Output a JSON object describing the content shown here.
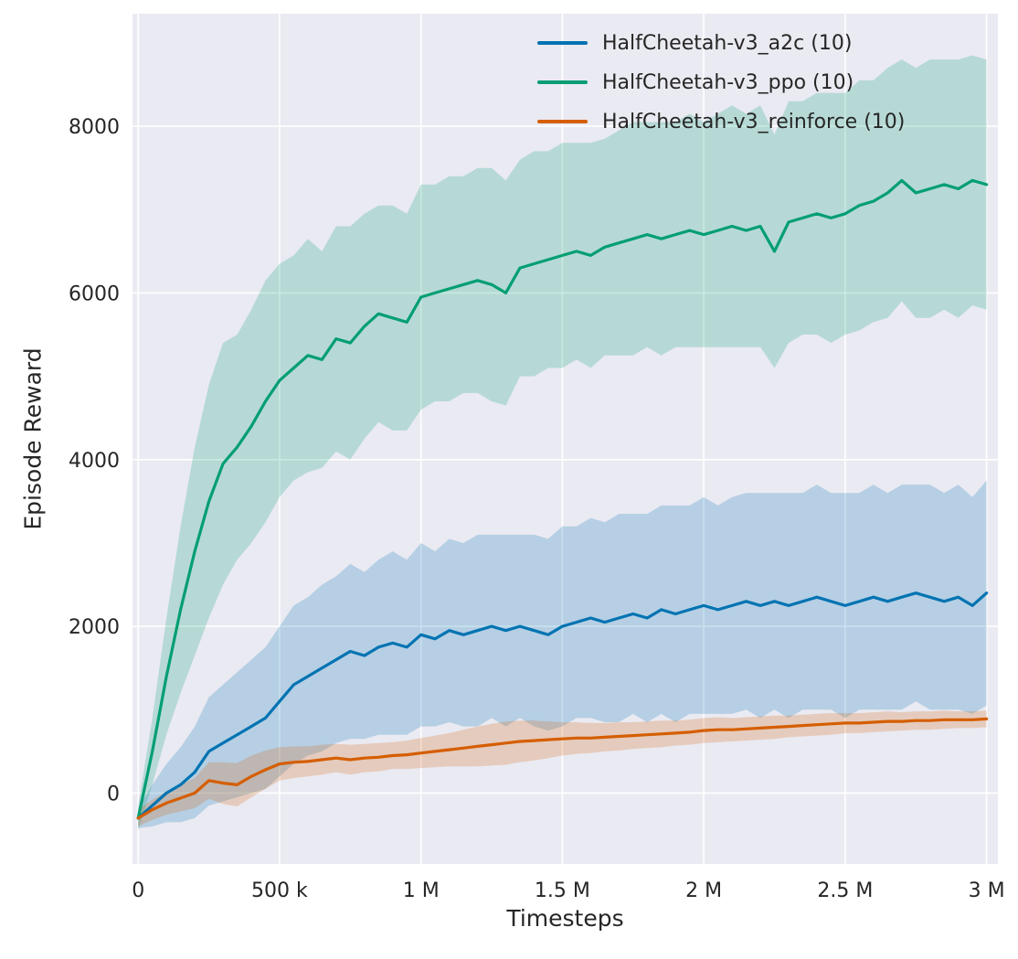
{
  "chart_data": {
    "type": "line",
    "title": "",
    "xlabel": "Timesteps",
    "ylabel": "Episode Reward",
    "x_unit": "timesteps (millions)",
    "xlim": [
      -0.02,
      3.04
    ],
    "ylim": [
      -850,
      9350
    ],
    "grid": true,
    "legend_position": "upper center",
    "style": {
      "axes_bg": "#eaeaf2",
      "grid_color": "#ffffff",
      "text_color": "#262626",
      "band_alpha": 0.22
    },
    "xticks": [
      {
        "value": 0,
        "label": "0"
      },
      {
        "value": 0.5,
        "label": "500 k"
      },
      {
        "value": 1,
        "label": "1 M"
      },
      {
        "value": 1.5,
        "label": "1.5 M"
      },
      {
        "value": 2,
        "label": "2 M"
      },
      {
        "value": 2.5,
        "label": "2.5 M"
      },
      {
        "value": 3,
        "label": "3 M"
      }
    ],
    "yticks": [
      {
        "value": 0,
        "label": "0"
      },
      {
        "value": 2000,
        "label": "2000"
      },
      {
        "value": 4000,
        "label": "4000"
      },
      {
        "value": 6000,
        "label": "6000"
      },
      {
        "value": 8000,
        "label": "8000"
      }
    ],
    "x": [
      0,
      0.05,
      0.1,
      0.15,
      0.2,
      0.25,
      0.3,
      0.35,
      0.4,
      0.45,
      0.5,
      0.55,
      0.6,
      0.65,
      0.7,
      0.75,
      0.8,
      0.85,
      0.9,
      0.95,
      1,
      1.05,
      1.1,
      1.15,
      1.2,
      1.25,
      1.3,
      1.35,
      1.4,
      1.45,
      1.5,
      1.55,
      1.6,
      1.65,
      1.7,
      1.75,
      1.8,
      1.85,
      1.9,
      1.95,
      2,
      2.05,
      2.1,
      2.15,
      2.2,
      2.25,
      2.3,
      2.35,
      2.4,
      2.45,
      2.5,
      2.55,
      2.6,
      2.65,
      2.7,
      2.75,
      2.8,
      2.85,
      2.9,
      2.95,
      3
    ],
    "series": [
      {
        "name": "a2c",
        "legend_label": "HalfCheetah-v3_a2c (10)",
        "color": "#0173b2",
        "mean": [
          -300,
          -150,
          0,
          100,
          250,
          500,
          600,
          700,
          800,
          900,
          1100,
          1300,
          1400,
          1500,
          1600,
          1700,
          1650,
          1750,
          1800,
          1750,
          1900,
          1850,
          1950,
          1900,
          1950,
          2000,
          1950,
          2000,
          1950,
          1900,
          2000,
          2050,
          2100,
          2050,
          2100,
          2150,
          2100,
          2200,
          2150,
          2200,
          2250,
          2200,
          2250,
          2300,
          2250,
          2300,
          2250,
          2300,
          2350,
          2300,
          2250,
          2300,
          2350,
          2300,
          2350,
          2400,
          2350,
          2300,
          2350,
          2250,
          2400
        ],
        "spread": [
          120,
          250,
          350,
          450,
          550,
          650,
          700,
          750,
          800,
          850,
          900,
          950,
          950,
          1000,
          1000,
          1050,
          1000,
          1050,
          1100,
          1050,
          1100,
          1050,
          1100,
          1100,
          1150,
          1100,
          1150,
          1100,
          1150,
          1150,
          1200,
          1150,
          1200,
          1200,
          1250,
          1200,
          1250,
          1250,
          1300,
          1250,
          1300,
          1250,
          1300,
          1300,
          1350,
          1300,
          1350,
          1300,
          1350,
          1300,
          1350,
          1300,
          1350,
          1300,
          1350,
          1300,
          1350,
          1300,
          1350,
          1300,
          1350
        ]
      },
      {
        "name": "ppo",
        "legend_label": "HalfCheetah-v3_ppo (10)",
        "color": "#029e73",
        "mean": [
          -300,
          500,
          1400,
          2200,
          2900,
          3500,
          3950,
          4150,
          4400,
          4700,
          4950,
          5100,
          5250,
          5200,
          5450,
          5400,
          5600,
          5750,
          5700,
          5650,
          5950,
          6000,
          6050,
          6100,
          6150,
          6100,
          6000,
          6300,
          6350,
          6400,
          6450,
          6500,
          6450,
          6550,
          6600,
          6650,
          6700,
          6650,
          6700,
          6750,
          6700,
          6750,
          6800,
          6750,
          6800,
          6500,
          6850,
          6900,
          6950,
          6900,
          6950,
          7050,
          7100,
          7200,
          7350,
          7200,
          7250,
          7300,
          7250,
          7350,
          7300
        ],
        "spread": [
          150,
          400,
          700,
          1000,
          1250,
          1400,
          1450,
          1350,
          1400,
          1450,
          1400,
          1350,
          1400,
          1300,
          1350,
          1400,
          1350,
          1300,
          1350,
          1300,
          1350,
          1300,
          1350,
          1300,
          1350,
          1400,
          1350,
          1300,
          1350,
          1300,
          1350,
          1300,
          1350,
          1300,
          1350,
          1400,
          1350,
          1400,
          1350,
          1400,
          1350,
          1400,
          1450,
          1400,
          1450,
          1400,
          1450,
          1400,
          1450,
          1500,
          1450,
          1500,
          1450,
          1500,
          1450,
          1500,
          1550,
          1500,
          1550,
          1500,
          1500
        ]
      },
      {
        "name": "reinforce",
        "legend_label": "HalfCheetah-v3_reinforce (10)",
        "color": "#d55e00",
        "mean": [
          -300,
          -200,
          -120,
          -60,
          0,
          150,
          120,
          100,
          200,
          280,
          350,
          370,
          380,
          400,
          420,
          400,
          420,
          430,
          450,
          460,
          480,
          500,
          520,
          540,
          560,
          580,
          600,
          620,
          630,
          640,
          650,
          660,
          660,
          670,
          680,
          690,
          700,
          710,
          720,
          730,
          750,
          760,
          760,
          770,
          780,
          790,
          800,
          810,
          820,
          830,
          840,
          840,
          850,
          860,
          860,
          870,
          870,
          880,
          880,
          880,
          890
        ],
        "spread": [
          100,
          120,
          140,
          160,
          180,
          220,
          250,
          260,
          250,
          230,
          200,
          190,
          180,
          180,
          170,
          180,
          170,
          170,
          160,
          170,
          180,
          190,
          200,
          220,
          240,
          250,
          260,
          250,
          240,
          220,
          200,
          190,
          180,
          170,
          170,
          160,
          160,
          160,
          150,
          150,
          150,
          150,
          140,
          140,
          140,
          140,
          130,
          130,
          130,
          130,
          120,
          120,
          120,
          120,
          110,
          110,
          110,
          110,
          100,
          100,
          100
        ]
      }
    ]
  }
}
